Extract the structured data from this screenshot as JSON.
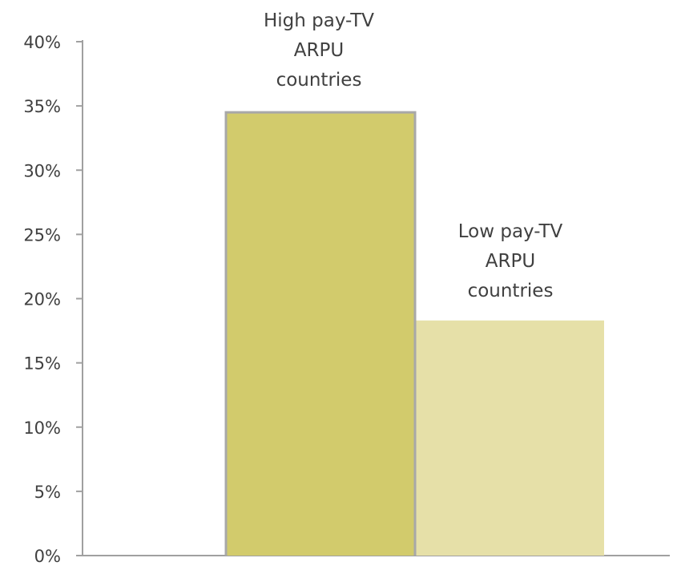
{
  "chart_data": {
    "type": "bar",
    "title": "",
    "xlabel": "",
    "ylabel": "",
    "categories": [
      "High pay-TV ARPU countries",
      "Low pay-TV ARPU countries"
    ],
    "values": [
      0.345,
      0.183
    ],
    "bar_labels": [
      [
        "High pay-TV",
        "ARPU",
        "countries"
      ],
      [
        "Low pay-TV",
        "ARPU",
        "countries"
      ]
    ],
    "colors": [
      "#d2cb6c",
      "#e6e0a8"
    ],
    "ylim": [
      0,
      0.4
    ],
    "yticks": [
      0,
      0.05,
      0.1,
      0.15,
      0.2,
      0.25,
      0.3,
      0.35,
      0.4
    ],
    "ytick_labels": [
      "0%",
      "5%",
      "10%",
      "15%",
      "20%",
      "25%",
      "30%",
      "35%",
      "40%"
    ],
    "grid": false,
    "legend": "none",
    "axis_color": "#a0a0a0"
  }
}
